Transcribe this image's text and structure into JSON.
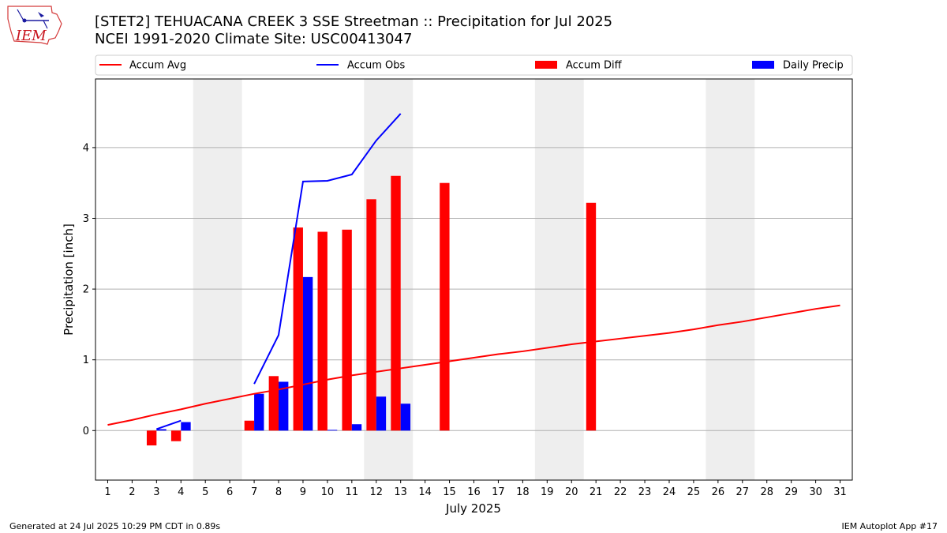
{
  "title": {
    "line1": "[STET2] TEHUACANA CREEK 3 SSE Streetman :: Precipitation for Jul 2025",
    "line2": "NCEI 1991-2020 Climate Site: USC00413047"
  },
  "logo": {
    "text": "IEM"
  },
  "footer": {
    "generated": "Generated at 24 Jul 2025 10:29 PM CDT in 0.89s",
    "app": "IEM Autoplot App #17"
  },
  "chart_data": {
    "type": "bar",
    "xlabel": "July 2025",
    "ylabel": "Precipitation [inch]",
    "xlim": [
      0.5,
      31.5
    ],
    "ylim": [
      -0.7,
      4.97
    ],
    "yticks": [
      0,
      1,
      2,
      3,
      4
    ],
    "x": [
      1,
      2,
      3,
      4,
      5,
      6,
      7,
      8,
      9,
      10,
      11,
      12,
      13,
      14,
      15,
      16,
      17,
      18,
      19,
      20,
      21,
      22,
      23,
      24,
      25,
      26,
      27,
      28,
      29,
      30,
      31
    ],
    "weekends": [
      [
        5,
        6
      ],
      [
        12,
        13
      ],
      [
        19,
        20
      ],
      [
        26,
        27
      ]
    ],
    "grid": "y",
    "legend_position": "top",
    "colors": {
      "avg": "#ff0000",
      "obs": "#0000ff",
      "diff": "#ff0000",
      "daily": "#0000ff",
      "weekend": "#eeeeee",
      "grid": "#b0b0b0"
    },
    "series": [
      {
        "name": "Accum Avg",
        "kind": "line",
        "color": "#ff0000",
        "values": [
          0.08,
          0.15,
          0.23,
          0.3,
          0.38,
          0.45,
          0.52,
          0.58,
          0.65,
          0.72,
          0.78,
          0.83,
          0.88,
          0.93,
          0.98,
          1.03,
          1.08,
          1.12,
          1.17,
          1.22,
          1.26,
          1.3,
          1.34,
          1.38,
          1.43,
          1.49,
          1.54,
          1.6,
          1.66,
          1.72,
          1.77
        ]
      },
      {
        "name": "Accum Obs",
        "kind": "line",
        "color": "#0000ff",
        "segments": [
          {
            "x": [
              3,
              4
            ],
            "y": [
              0.02,
              0.14
            ]
          },
          {
            "x": [
              7,
              8,
              9,
              10,
              11,
              12,
              13
            ],
            "y": [
              0.66,
              1.35,
              3.52,
              3.53,
              3.62,
              4.1,
              4.48
            ]
          }
        ]
      },
      {
        "name": "Accum Diff",
        "kind": "bar",
        "color": "#ff0000",
        "values": [
          null,
          null,
          -0.21,
          -0.15,
          null,
          null,
          0.14,
          0.77,
          2.87,
          2.81,
          2.84,
          3.27,
          3.6,
          null,
          3.5,
          null,
          null,
          null,
          null,
          null,
          3.22,
          null,
          null,
          null,
          null,
          null,
          null,
          null,
          null,
          null,
          null
        ]
      },
      {
        "name": "Daily Precip",
        "kind": "bar",
        "color": "#0000ff",
        "values": [
          null,
          null,
          0.02,
          0.12,
          null,
          null,
          0.52,
          0.69,
          2.17,
          0.01,
          0.09,
          0.48,
          0.38,
          null,
          null,
          null,
          null,
          null,
          null,
          null,
          null,
          null,
          null,
          null,
          null,
          null,
          null,
          null,
          null,
          null,
          null
        ]
      }
    ]
  }
}
